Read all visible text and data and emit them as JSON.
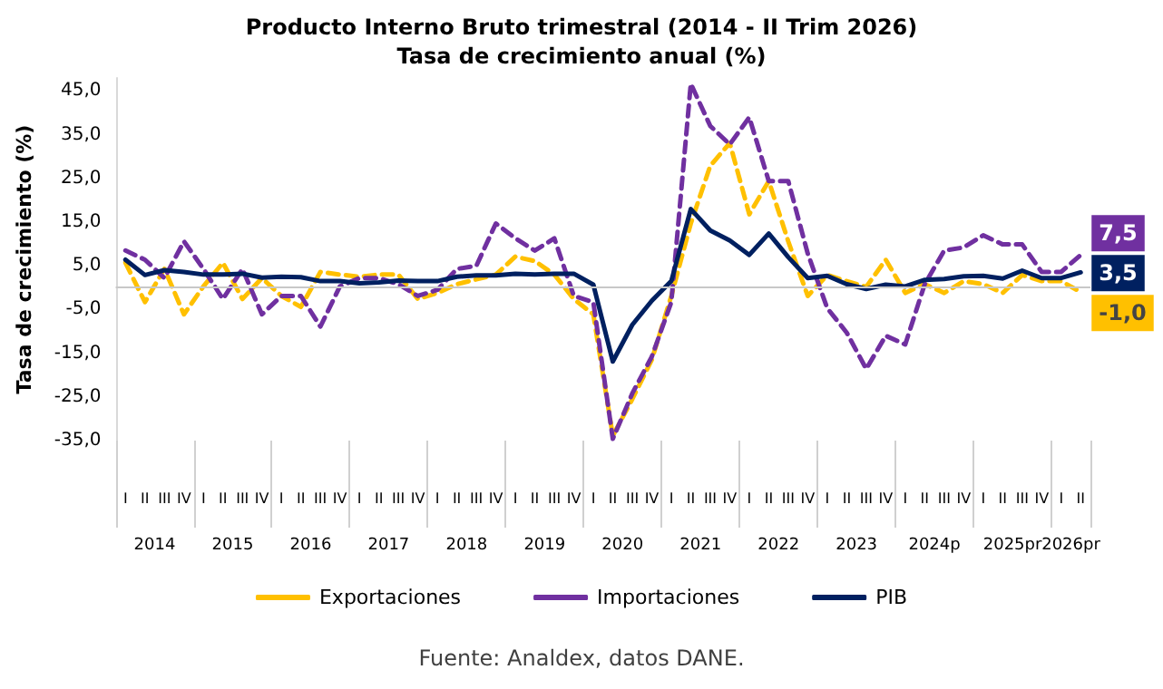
{
  "chart_data": {
    "type": "line",
    "title": "Producto Interno Bruto trimestral (2014 - II Trim 2026)",
    "subtitle": "Tasa de crecimiento anual (%)",
    "ylabel": "Tasa de crecimiento (%)",
    "categories": [
      "I",
      "II",
      "III",
      "IV",
      "I",
      "II",
      "III",
      "IV",
      "I",
      "II",
      "III",
      "IV",
      "I",
      "II",
      "III",
      "IV",
      "I",
      "II",
      "III",
      "IV",
      "I",
      "II",
      "III",
      "IV",
      "I",
      "II",
      "III",
      "IV",
      "I",
      "II",
      "III",
      "IV",
      "I",
      "II",
      "III",
      "IV",
      "I",
      "II",
      "III",
      "IV",
      "I",
      "II",
      "III",
      "IV",
      "I",
      "II",
      "III",
      "IV",
      "I",
      "II"
    ],
    "annotations": [
      "2014",
      "2015",
      "2016",
      "2017",
      "2018",
      "2019",
      "2020",
      "2021",
      "2022",
      "2023",
      "2024p",
      "2025pr",
      "2026pr",
      "Fuente: Analdex, datos DANE."
    ],
    "series": [
      {
        "name": "Exportaciones",
        "color": "#ffc000",
        "line_style": "dashed",
        "values": [
          5.7,
          -3.3,
          4.3,
          -6.1,
          0.3,
          5.7,
          -2.6,
          2.2,
          -1.9,
          -4.4,
          3.6,
          3.0,
          2.5,
          3.0,
          3.0,
          -2.6,
          -1.2,
          0.8,
          1.9,
          3.0,
          7.1,
          6.1,
          3.0,
          -2.6,
          -6.1,
          -33.9,
          -25.5,
          -16.5,
          -1.9,
          14.7,
          27.9,
          33.1,
          16.8,
          24.4,
          10.6,
          -1.9,
          2.9,
          1.5,
          0.2,
          6.4,
          -1.2,
          0.8,
          -1.2,
          1.5,
          0.8,
          -1.2,
          2.9,
          1.5,
          1.5,
          -1.0
        ],
        "value_labels": [
          null,
          null,
          null,
          null,
          null,
          null,
          null,
          null,
          null,
          null,
          null,
          null,
          null,
          null,
          null,
          null,
          null,
          null,
          null,
          null,
          null,
          null,
          null,
          null,
          null,
          null,
          null,
          null,
          null,
          null,
          null,
          null,
          null,
          null,
          null,
          null,
          null,
          null,
          null,
          null,
          null,
          null,
          null,
          null,
          null,
          null,
          null,
          null,
          null,
          "-1,0"
        ]
      },
      {
        "name": "Importaciones",
        "color": "#7030a0",
        "line_style": "dashed",
        "values": [
          8.5,
          6.4,
          2.2,
          10.6,
          4.3,
          -2.6,
          4.3,
          -6.1,
          -1.9,
          -1.9,
          -8.9,
          0.3,
          2.2,
          2.2,
          0.8,
          -1.9,
          -0.5,
          4.3,
          5.0,
          14.7,
          11.3,
          8.5,
          11.3,
          -1.9,
          -3.3,
          -34.6,
          -24.2,
          -15.8,
          -3.3,
          46.7,
          37.0,
          32.8,
          39.0,
          24.4,
          24.4,
          7.8,
          -4.7,
          -10.3,
          -18.6,
          -11.0,
          -13.0,
          0.8,
          8.5,
          9.2,
          12.0,
          9.9,
          9.9,
          3.6,
          3.6,
          7.5
        ],
        "value_labels": [
          null,
          null,
          null,
          null,
          null,
          null,
          null,
          null,
          null,
          null,
          null,
          null,
          null,
          null,
          null,
          null,
          null,
          null,
          null,
          null,
          null,
          null,
          null,
          null,
          null,
          null,
          null,
          null,
          null,
          null,
          null,
          null,
          null,
          null,
          null,
          null,
          null,
          null,
          null,
          null,
          null,
          null,
          null,
          null,
          null,
          null,
          null,
          null,
          null,
          "7,5"
        ]
      },
      {
        "name": "PIB",
        "color": "#002060",
        "line_style": "solid",
        "values": [
          6.4,
          2.9,
          4.0,
          3.6,
          3.0,
          3.0,
          3.2,
          2.3,
          2.5,
          2.4,
          1.5,
          1.5,
          1.0,
          1.2,
          1.6,
          1.5,
          1.5,
          2.5,
          2.8,
          2.8,
          3.2,
          3.0,
          3.2,
          3.2,
          0.7,
          -16.9,
          -8.5,
          -3.0,
          1.5,
          18.0,
          13.1,
          10.8,
          7.5,
          12.4,
          7.0,
          2.2,
          2.7,
          0.8,
          -0.3,
          0.7,
          0.3,
          1.8,
          2.0,
          2.6,
          2.7,
          2.1,
          3.9,
          2.2,
          2.2,
          3.5
        ],
        "value_labels": [
          null,
          null,
          null,
          null,
          null,
          null,
          null,
          null,
          null,
          null,
          null,
          null,
          null,
          null,
          null,
          null,
          null,
          null,
          null,
          null,
          null,
          null,
          null,
          null,
          null,
          null,
          null,
          null,
          null,
          null,
          null,
          null,
          null,
          null,
          null,
          null,
          null,
          null,
          null,
          null,
          null,
          null,
          null,
          null,
          null,
          null,
          null,
          null,
          null,
          "3,5"
        ]
      }
    ],
    "ylim": [
      -35,
      48
    ],
    "yticks": [
      {
        "value": -35,
        "label": "-35,0"
      },
      {
        "value": -25,
        "label": "-25,0"
      },
      {
        "value": -15,
        "label": "-15,0"
      },
      {
        "value": -5,
        "label": "-5,0"
      },
      {
        "value": 5,
        "label": "5,0"
      },
      {
        "value": 15,
        "label": "15,0"
      },
      {
        "value": 25,
        "label": "25,0"
      },
      {
        "value": 35,
        "label": "35,0"
      },
      {
        "value": 45,
        "label": "45,0"
      }
    ],
    "grid": false,
    "legend": "bottom",
    "marker": "none"
  }
}
